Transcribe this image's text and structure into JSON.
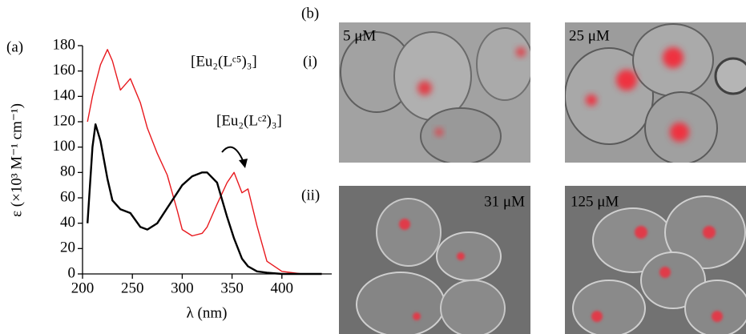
{
  "chart_data": {
    "type": "line",
    "panel_label": "(a)",
    "x_label": "λ (nm)",
    "y_label": "ε (×10³ M⁻¹ cm⁻¹)",
    "x": [
      205,
      210,
      213,
      218,
      225,
      230,
      238,
      248,
      258,
      265,
      275,
      285,
      295,
      300,
      310,
      320,
      325,
      335,
      345,
      352,
      360,
      366,
      375,
      385,
      400,
      420,
      440
    ],
    "series": [
      {
        "name": "[Eu₂(Lᶜ⁵)₃]",
        "color": "#e8191e",
        "values": [
          120,
          140,
          150,
          165,
          177,
          168,
          145,
          154,
          135,
          115,
          95,
          78,
          50,
          35,
          30,
          32,
          37,
          55,
          72,
          80,
          64,
          67,
          38,
          10,
          2,
          0,
          0
        ]
      },
      {
        "name": "[Eu₂(Lᶜ²)₃]",
        "color": "#000000",
        "values": [
          40,
          100,
          118,
          105,
          75,
          58,
          51,
          48,
          37,
          35,
          40,
          52,
          64,
          70,
          77,
          80,
          80,
          72,
          45,
          28,
          12,
          6,
          2,
          1,
          0,
          0,
          0
        ]
      }
    ],
    "xlim": [
      200,
      450
    ],
    "xticks": [
      200,
      250,
      300,
      350,
      400
    ],
    "ylim": [
      0,
      180
    ],
    "yticks": [
      0,
      20,
      40,
      60,
      80,
      100,
      120,
      140,
      160,
      180
    ]
  },
  "panel_b": {
    "label": "(b)",
    "rows": [
      {
        "label": "(i)",
        "images": [
          "5 μM",
          "25 μM"
        ]
      },
      {
        "label": "(ii)",
        "images": [
          "31 μM",
          "125 μM"
        ]
      }
    ]
  }
}
